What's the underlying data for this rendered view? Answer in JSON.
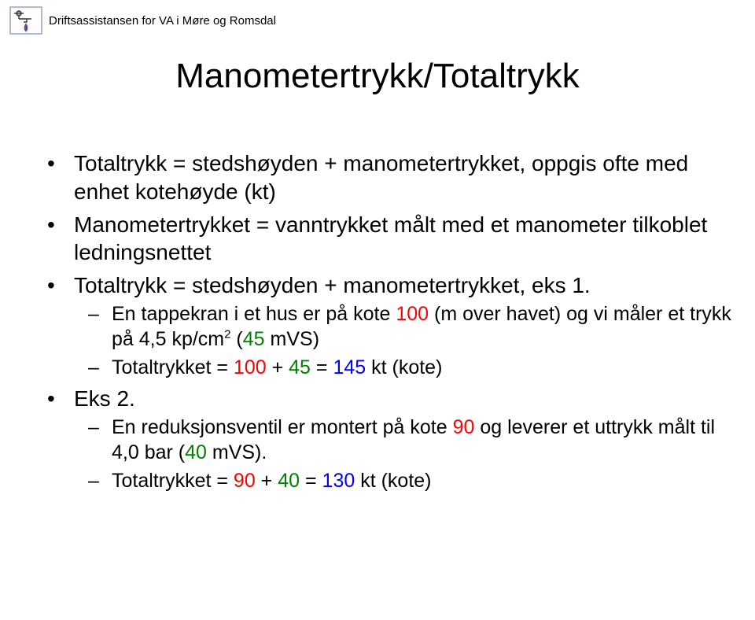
{
  "header": {
    "org": "Driftsassistansen for VA i Møre og Romsdal"
  },
  "title": "Manometertrykk/Totaltrykk",
  "colors": {
    "red": "#ff0000",
    "green": "#008000",
    "blue": "#0000ff",
    "black": "#000000",
    "background": "#ffffff"
  },
  "bullets": [
    {
      "parts": [
        {
          "text": "Totaltrykk = stedshøyden + manometertrykket, oppgis ofte med enhet kotehøyde (kt)"
        }
      ]
    },
    {
      "parts": [
        {
          "text": "Manometertrykket = vanntrykket målt med et manometer tilkoblet ledningsnettet"
        }
      ]
    },
    {
      "parts": [
        {
          "text": "Totaltrykk = stedshøyden + manometertrykket, eks 1."
        }
      ],
      "sub": [
        {
          "parts": [
            {
              "text": "En tappekran i et hus er på kote "
            },
            {
              "text": "100",
              "color": "red"
            },
            {
              "text": " (m over havet) og vi måler et trykk på 4,5 kp/cm"
            },
            {
              "text": "2",
              "sup": true
            },
            {
              "text": " ("
            },
            {
              "text": "45",
              "color": "green"
            },
            {
              "text": " mVS)"
            }
          ]
        },
        {
          "parts": [
            {
              "text": "Totaltrykket = "
            },
            {
              "text": "100",
              "color": "red"
            },
            {
              "text": " + "
            },
            {
              "text": "45",
              "color": "green"
            },
            {
              "text": " = "
            },
            {
              "text": "145",
              "color": "blue"
            },
            {
              "text": " kt (kote)"
            }
          ]
        }
      ]
    },
    {
      "parts": [
        {
          "text": "Eks 2."
        }
      ],
      "sub": [
        {
          "parts": [
            {
              "text": "En reduksjonsventil er montert på kote "
            },
            {
              "text": "90",
              "color": "red"
            },
            {
              "text": " og leverer et uttrykk målt til 4,0 bar ("
            },
            {
              "text": "40",
              "color": "green"
            },
            {
              "text": " mVS)."
            }
          ]
        },
        {
          "parts": [
            {
              "text": "Totaltrykket = "
            },
            {
              "text": "90",
              "color": "red"
            },
            {
              "text": " + "
            },
            {
              "text": "40",
              "color": "green"
            },
            {
              "text": " = "
            },
            {
              "text": "130",
              "color": "blue"
            },
            {
              "text": " kt (kote)"
            }
          ]
        }
      ]
    }
  ]
}
